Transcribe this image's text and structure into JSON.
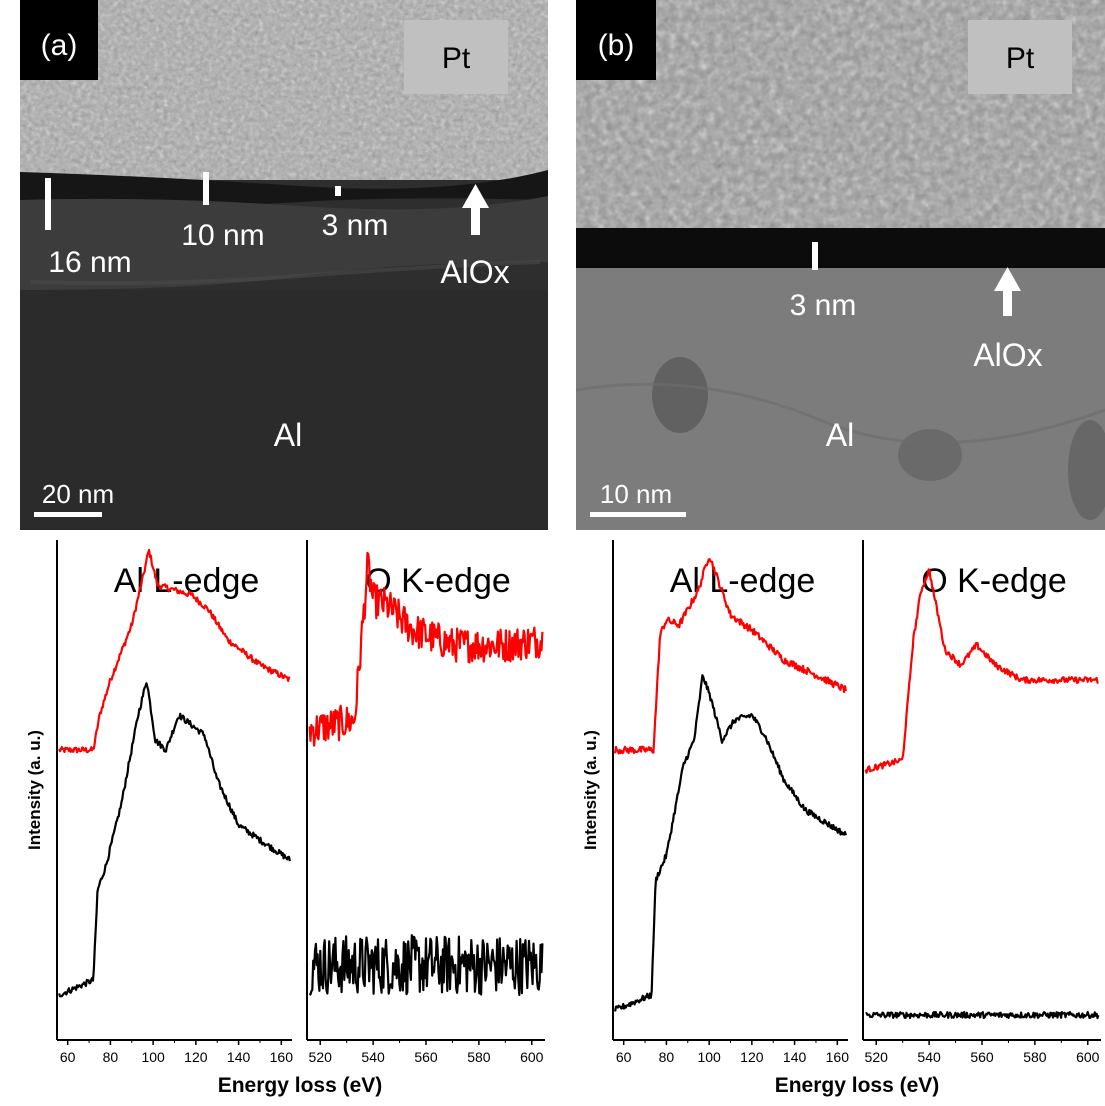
{
  "panel_a": {
    "label": "(a)",
    "pt_label": "Pt",
    "thickness_labels": [
      "16 nm",
      "10 nm",
      "3 nm"
    ],
    "oxide_label": "AlOx",
    "metal_label": "Al",
    "scale_bar": "20 nm"
  },
  "panel_b": {
    "label": "(b)",
    "pt_label": "Pt",
    "thickness_labels": [
      "3 nm"
    ],
    "oxide_label": "AlOx",
    "metal_label": "Al",
    "scale_bar": "10 nm"
  },
  "spectra": {
    "ylabel": "Intensity (a. u.)",
    "xlabel": "Energy loss (eV)",
    "al_title": "Al L-edge",
    "o_title": "O K-edge",
    "al_ticks": [
      "60",
      "80",
      "100",
      "120",
      "140",
      "160"
    ],
    "o_ticks": [
      "520",
      "540",
      "560",
      "580",
      "600"
    ],
    "series_colors": {
      "top": "#ff0000",
      "bottom": "#000000"
    }
  },
  "chart_data": [
    {
      "type": "line",
      "title": "Al L-edge",
      "xlabel": "Energy loss (eV)",
      "ylabel": "Intensity (a. u.)",
      "xlim": [
        55,
        165
      ],
      "series": [
        {
          "color": "#ff0000",
          "x": [
            56,
            72,
            75,
            80,
            90,
            96,
            98,
            102,
            110,
            118,
            126,
            135,
            150,
            164
          ],
          "y": [
            0.58,
            0.58,
            0.65,
            0.72,
            0.83,
            0.94,
            0.98,
            0.91,
            0.9,
            0.89,
            0.86,
            0.8,
            0.75,
            0.72
          ]
        },
        {
          "color": "#000000",
          "x": [
            56,
            72,
            74,
            78,
            85,
            93,
            97,
            101,
            106,
            112,
            124,
            130,
            140,
            150,
            164
          ],
          "y": [
            0.09,
            0.12,
            0.3,
            0.35,
            0.47,
            0.65,
            0.72,
            0.6,
            0.58,
            0.65,
            0.61,
            0.52,
            0.43,
            0.4,
            0.36
          ]
        }
      ]
    },
    {
      "type": "line",
      "title": "O K-edge",
      "xlabel": "Energy loss (eV)",
      "xlim": [
        515,
        605
      ],
      "series": [
        {
          "color": "#ff0000",
          "x": [
            516,
            533,
            538,
            540,
            545,
            555,
            570,
            590,
            604
          ],
          "y": [
            0.62,
            0.64,
            0.95,
            0.88,
            0.87,
            0.82,
            0.79,
            0.79,
            0.8
          ]
        },
        {
          "color": "#000000",
          "x": [
            516,
            540,
            560,
            580,
            604
          ],
          "y": [
            0.15,
            0.15,
            0.15,
            0.15,
            0.15
          ]
        }
      ]
    },
    {
      "type": "line",
      "title": "Al L-edge",
      "xlabel": "Energy loss (eV)",
      "ylabel": "Intensity (a. u.)",
      "xlim": [
        55,
        165
      ],
      "series": [
        {
          "color": "#ff0000",
          "x": [
            56,
            74,
            77,
            80,
            86,
            95,
            100,
            110,
            120,
            135,
            150,
            164
          ],
          "y": [
            0.58,
            0.58,
            0.81,
            0.84,
            0.83,
            0.9,
            0.97,
            0.85,
            0.82,
            0.76,
            0.73,
            0.7
          ]
        },
        {
          "color": "#000000",
          "x": [
            56,
            73,
            75,
            80,
            88,
            93,
            97,
            101,
            106,
            112,
            120,
            126,
            135,
            145,
            164
          ],
          "y": [
            0.06,
            0.09,
            0.32,
            0.37,
            0.55,
            0.6,
            0.73,
            0.68,
            0.6,
            0.64,
            0.65,
            0.61,
            0.52,
            0.46,
            0.41
          ]
        }
      ]
    },
    {
      "type": "line",
      "title": "O K-edge",
      "xlabel": "Energy loss (eV)",
      "xlim": [
        515,
        605
      ],
      "series": [
        {
          "color": "#ff0000",
          "x": [
            516,
            530,
            534,
            537,
            540,
            546,
            552,
            558,
            565,
            575,
            590,
            604
          ],
          "y": [
            0.54,
            0.56,
            0.8,
            0.9,
            0.94,
            0.78,
            0.75,
            0.79,
            0.75,
            0.72,
            0.72,
            0.72
          ]
        },
        {
          "color": "#000000",
          "x": [
            516,
            540,
            560,
            580,
            604
          ],
          "y": [
            0.05,
            0.05,
            0.05,
            0.05,
            0.05
          ]
        }
      ]
    }
  ]
}
